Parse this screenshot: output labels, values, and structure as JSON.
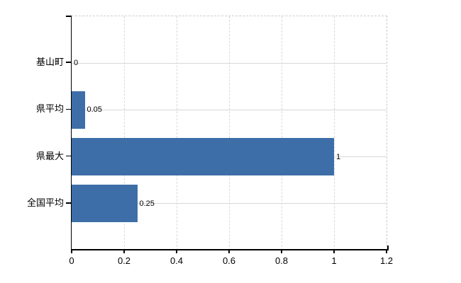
{
  "chart_data": {
    "type": "bar",
    "orientation": "horizontal",
    "title": "",
    "xlabel": "",
    "ylabel": "",
    "categories": [
      "基山町",
      "県平均",
      "県最大",
      "全国平均"
    ],
    "values": [
      0,
      0.05,
      1,
      0.25
    ],
    "value_labels": [
      "0",
      "0.05",
      "1",
      "0.25"
    ],
    "xlim": [
      0,
      1.2
    ],
    "xticks": [
      {
        "value": 0,
        "label": "0"
      },
      {
        "value": 0.2,
        "label": "0.2"
      },
      {
        "value": 0.4,
        "label": "0.4"
      },
      {
        "value": 0.6,
        "label": "0.6"
      },
      {
        "value": 0.8,
        "label": "0.8"
      },
      {
        "value": 1,
        "label": "1"
      },
      {
        "value": 1.2,
        "label": "1.2"
      }
    ],
    "grid": true,
    "legend": false,
    "colors": {
      "bar": "#3D6EA8",
      "grid": "#d9d9d9",
      "border_dashed": "#cccccc",
      "axis": "#000000",
      "text": "#000000"
    }
  }
}
